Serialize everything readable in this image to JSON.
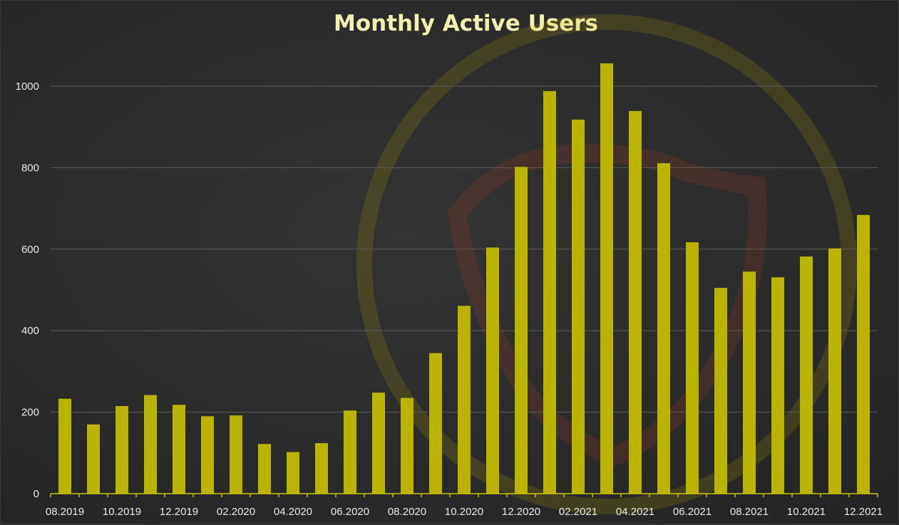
{
  "chart_data": {
    "type": "bar",
    "title": "Monthly Active Users",
    "xlabel": "",
    "ylabel": "",
    "ylim": [
      0,
      1100
    ],
    "yticks": [
      0,
      200,
      400,
      600,
      800,
      1000
    ],
    "grid": true,
    "bar_color": "#b9b400",
    "categories": [
      "08.2019",
      "09.2019",
      "10.2019",
      "11.2019",
      "12.2019",
      "01.2020",
      "02.2020",
      "03.2020",
      "04.2020",
      "05.2020",
      "06.2020",
      "07.2020",
      "08.2020",
      "09.2020",
      "10.2020",
      "11.2020",
      "12.2020",
      "01.2021",
      "02.2021",
      "03.2021",
      "04.2021",
      "05.2021",
      "06.2021",
      "07.2021",
      "08.2021",
      "09.2021",
      "10.2021",
      "11.2021",
      "12.2021"
    ],
    "tick_labels": [
      "08.2019",
      "",
      "10.2019",
      "",
      "12.2019",
      "",
      "02.2020",
      "",
      "04.2020",
      "",
      "06.2020",
      "",
      "08.2020",
      "",
      "10.2020",
      "",
      "12.2020",
      "",
      "02.2021",
      "",
      "04.2021",
      "",
      "06.2021",
      "",
      "08.2021",
      "",
      "10.2021",
      "",
      "12.2021"
    ],
    "values": [
      233,
      170,
      215,
      242,
      218,
      190,
      192,
      122,
      102,
      124,
      204,
      248,
      235,
      345,
      461,
      604,
      802,
      988,
      918,
      1056,
      939,
      811,
      617,
      505,
      545,
      531,
      582,
      602,
      684
    ]
  }
}
